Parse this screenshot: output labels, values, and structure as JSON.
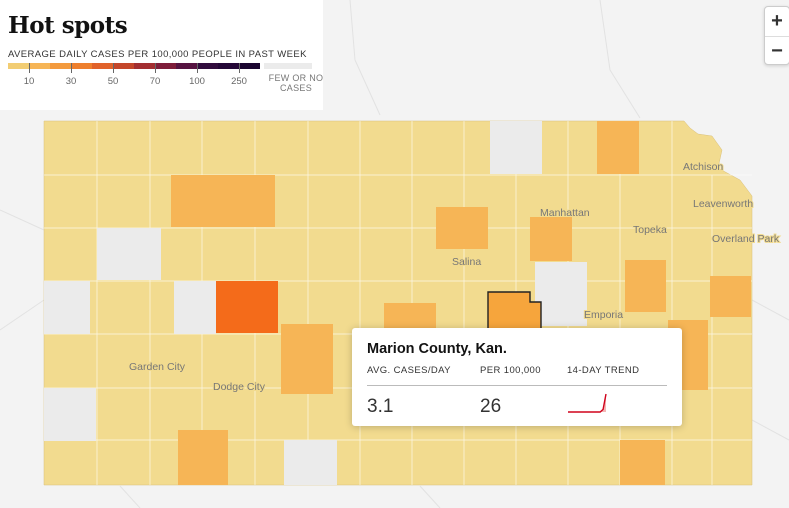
{
  "legend": {
    "title": "Hot spots",
    "subtitle": "AVERAGE DAILY CASES PER 100,000 PEOPLE IN PAST WEEK",
    "scale_colors": [
      "#f2cd73",
      "#f6b556",
      "#f39a3d",
      "#ee7f2d",
      "#e1622a",
      "#c4462a",
      "#a32e31",
      "#7e1d3a",
      "#561341",
      "#310c3d",
      "#240737",
      "#1a0530"
    ],
    "tick_labels": [
      "10",
      "30",
      "50",
      "70",
      "100",
      "250"
    ],
    "few_label": "FEW OR NO CASES",
    "few_color": "#ebebeb"
  },
  "zoom": {
    "in_label": "+",
    "out_label": "−"
  },
  "map": {
    "state_fill": "#f2db8f",
    "background": "#f3f3f3",
    "cities": [
      "Atchison",
      "Leavenworth",
      "Manhattan",
      "Topeka",
      "Overland Park",
      "Salina",
      "Emporia",
      "Garden City",
      "Dodge City"
    ]
  },
  "tooltip": {
    "county": "Marion County, Kan.",
    "col1_label": "AVG. CASES/DAY",
    "col2_label": "PER 100,000",
    "col3_label": "14-DAY TREND",
    "cases_per_day": "3.1",
    "per_100k": "26",
    "trend": [
      0,
      0,
      0,
      0,
      0,
      0,
      0,
      0,
      0,
      0,
      0,
      0,
      1,
      7
    ]
  }
}
